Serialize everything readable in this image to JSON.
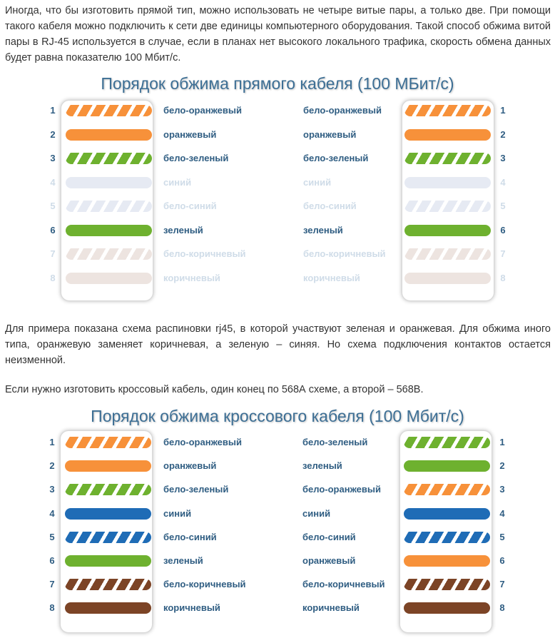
{
  "paragraphs": {
    "intro": "Иногда, что бы изготовить прямой тип, можно использовать не четыре витые пары, а только две. При помощи такого кабеля можно подключить к сети две единицы компьютерного оборудования. Такой способ обжима витой пары в RJ-45 используется в случае, если в планах нет высокого локального трафика, скорость обмена данных будет равна показателю 100 Мбит/с.",
    "example": "Для примера показана схема распиновки rj45, в которой участвуют зеленая и оранжевая. Для обжима иного типа, оранжевую заменяет коричневая, а зеленую – синяя. Но схема подключения контактов остается неизменной.",
    "crossover": "Если нужно изготовить кроссовый кабель, один конец по 568А схеме, а второй – 568В."
  },
  "colors": {
    "orange": "#f7913a",
    "green": "#6eb12f",
    "blue": "#1f6cb6",
    "brown": "#7c4426",
    "faded_blue": "#e6eaf3",
    "faded_brown": "#ede4e0",
    "label_text": "#2f5d82",
    "faded_text": "#cfdce8"
  },
  "diagrams": [
    {
      "title": "Порядок обжима прямого кабеля (100 МБит/с)",
      "left_end": [
        {
          "pin": "1",
          "label": "бело-оранжевый",
          "color": "orange",
          "striped": true,
          "active": true
        },
        {
          "pin": "2",
          "label": "оранжевый",
          "color": "orange",
          "striped": false,
          "active": true
        },
        {
          "pin": "3",
          "label": "бело-зеленый",
          "color": "green",
          "striped": true,
          "active": true
        },
        {
          "pin": "4",
          "label": "синий",
          "color": "faded_blue",
          "striped": false,
          "active": false
        },
        {
          "pin": "5",
          "label": "бело-синий",
          "color": "faded_blue",
          "striped": true,
          "active": false
        },
        {
          "pin": "6",
          "label": "зеленый",
          "color": "green",
          "striped": false,
          "active": true
        },
        {
          "pin": "7",
          "label": "бело-коричневый",
          "color": "faded_brown",
          "striped": true,
          "active": false
        },
        {
          "pin": "8",
          "label": "коричневый",
          "color": "faded_brown",
          "striped": false,
          "active": false
        }
      ],
      "right_end": [
        {
          "pin": "1",
          "label": "бело-оранжевый",
          "color": "orange",
          "striped": true,
          "active": true
        },
        {
          "pin": "2",
          "label": "оранжевый",
          "color": "orange",
          "striped": false,
          "active": true
        },
        {
          "pin": "3",
          "label": "бело-зеленый",
          "color": "green",
          "striped": true,
          "active": true
        },
        {
          "pin": "4",
          "label": "синий",
          "color": "faded_blue",
          "striped": false,
          "active": false
        },
        {
          "pin": "5",
          "label": "бело-синий",
          "color": "faded_blue",
          "striped": true,
          "active": false
        },
        {
          "pin": "6",
          "label": "зеленый",
          "color": "green",
          "striped": false,
          "active": true
        },
        {
          "pin": "7",
          "label": "бело-коричневый",
          "color": "faded_brown",
          "striped": true,
          "active": false
        },
        {
          "pin": "8",
          "label": "коричневый",
          "color": "faded_brown",
          "striped": false,
          "active": false
        }
      ]
    },
    {
      "title": "Порядок обжима кроссового кабеля (100 Мбит/с)",
      "left_end": [
        {
          "pin": "1",
          "label": "бело-оранжевый",
          "color": "orange",
          "striped": true,
          "active": true
        },
        {
          "pin": "2",
          "label": "оранжевый",
          "color": "orange",
          "striped": false,
          "active": true
        },
        {
          "pin": "3",
          "label": "бело-зеленый",
          "color": "green",
          "striped": true,
          "active": true
        },
        {
          "pin": "4",
          "label": "синий",
          "color": "blue",
          "striped": false,
          "active": true
        },
        {
          "pin": "5",
          "label": "бело-синий",
          "color": "blue",
          "striped": true,
          "active": true
        },
        {
          "pin": "6",
          "label": "зеленый",
          "color": "green",
          "striped": false,
          "active": true
        },
        {
          "pin": "7",
          "label": "бело-коричневый",
          "color": "brown",
          "striped": true,
          "active": true
        },
        {
          "pin": "8",
          "label": "коричневый",
          "color": "brown",
          "striped": false,
          "active": true
        }
      ],
      "right_end": [
        {
          "pin": "1",
          "label": "бело-зеленый",
          "color": "green",
          "striped": true,
          "active": true
        },
        {
          "pin": "2",
          "label": "зеленый",
          "color": "green",
          "striped": false,
          "active": true
        },
        {
          "pin": "3",
          "label": "бело-оранжевый",
          "color": "orange",
          "striped": true,
          "active": true
        },
        {
          "pin": "4",
          "label": "синий",
          "color": "blue",
          "striped": false,
          "active": true
        },
        {
          "pin": "5",
          "label": "бело-синий",
          "color": "blue",
          "striped": true,
          "active": true
        },
        {
          "pin": "6",
          "label": "оранжевый",
          "color": "orange",
          "striped": false,
          "active": true
        },
        {
          "pin": "7",
          "label": "бело-коричневый",
          "color": "brown",
          "striped": true,
          "active": true
        },
        {
          "pin": "8",
          "label": "коричневый",
          "color": "brown",
          "striped": false,
          "active": true
        }
      ]
    }
  ]
}
